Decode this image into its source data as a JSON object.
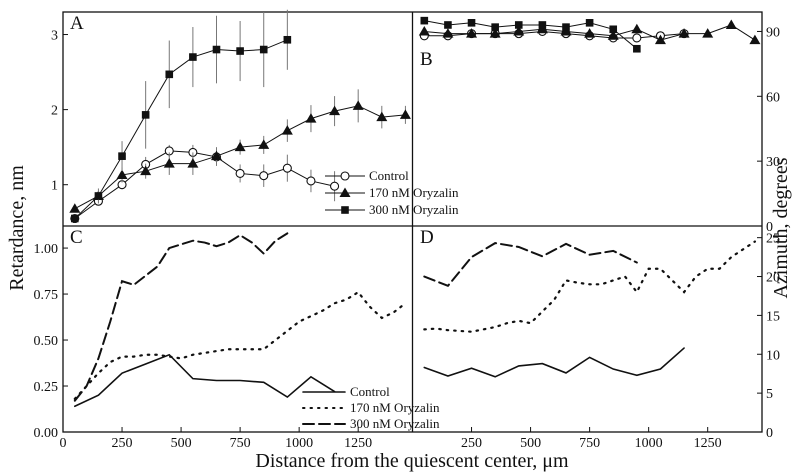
{
  "chart_data": [
    {
      "panel": "A",
      "type": "line",
      "ylabel": "Retardance, nm",
      "ylim": [
        0.45,
        3.3
      ],
      "xlim": [
        0,
        1480
      ],
      "yticks": [
        1,
        2,
        3
      ],
      "error_bars": true,
      "legend_position": "center-right",
      "series": [
        {
          "name": "Control",
          "marker": "open-circle",
          "x": [
            50,
            150,
            250,
            350,
            450,
            550,
            650,
            750,
            850,
            950,
            1050,
            1150
          ],
          "y": [
            0.55,
            0.78,
            1.0,
            1.27,
            1.45,
            1.43,
            1.37,
            1.15,
            1.12,
            1.22,
            1.05,
            0.98
          ],
          "err": [
            0.05,
            0.05,
            0.06,
            0.1,
            0.08,
            0.1,
            0.12,
            0.12,
            0.15,
            0.18,
            0.15,
            0.2
          ]
        },
        {
          "name": "170 nM Oryzalin",
          "marker": "filled-triangle",
          "x": [
            50,
            150,
            250,
            350,
            450,
            550,
            650,
            750,
            850,
            950,
            1050,
            1150,
            1250,
            1350,
            1450
          ],
          "y": [
            0.68,
            0.85,
            1.13,
            1.18,
            1.28,
            1.28,
            1.38,
            1.5,
            1.53,
            1.72,
            1.88,
            1.98,
            2.05,
            1.9,
            1.93
          ],
          "err": [
            0.05,
            0.06,
            0.1,
            0.1,
            0.15,
            0.15,
            0.12,
            0.1,
            0.12,
            0.15,
            0.18,
            0.2,
            0.22,
            0.15,
            0.12
          ]
        },
        {
          "name": "300 nM Oryzalin",
          "marker": "filled-square",
          "x": [
            50,
            150,
            250,
            350,
            450,
            550,
            650,
            750,
            850,
            950
          ],
          "y": [
            0.55,
            0.85,
            1.38,
            1.93,
            2.47,
            2.7,
            2.8,
            2.78,
            2.8,
            2.93
          ],
          "err": [
            0.05,
            0.1,
            0.2,
            0.45,
            0.45,
            0.4,
            0.45,
            0.4,
            0.5,
            0.4
          ]
        }
      ]
    },
    {
      "panel": "B",
      "type": "line",
      "ylabel": "Azimuth, degrees",
      "ylim": [
        0,
        99
      ],
      "xlim": [
        0,
        1480
      ],
      "yticks": [
        0,
        30,
        60,
        90
      ],
      "error_bars": true,
      "series": [
        {
          "name": "Control",
          "marker": "open-circle",
          "x": [
            50,
            150,
            250,
            350,
            450,
            550,
            650,
            750,
            850,
            950,
            1050,
            1150
          ],
          "y": [
            88,
            88,
            89,
            89,
            89,
            90,
            89,
            88,
            87,
            87,
            88,
            89
          ]
        },
        {
          "name": "170 nM Oryzalin",
          "marker": "filled-triangle",
          "x": [
            50,
            150,
            250,
            350,
            450,
            550,
            650,
            750,
            850,
            950,
            1050,
            1150,
            1250,
            1350,
            1450
          ],
          "y": [
            90,
            89,
            89,
            89,
            90,
            91,
            90,
            89,
            88,
            91,
            86,
            89,
            89,
            93,
            86
          ]
        },
        {
          "name": "300 nM Oryzalin",
          "marker": "filled-square",
          "x": [
            50,
            150,
            250,
            350,
            450,
            550,
            650,
            750,
            850,
            950
          ],
          "y": [
            95,
            93,
            94,
            92,
            93,
            93,
            92,
            94,
            91,
            82
          ]
        }
      ]
    },
    {
      "panel": "C",
      "type": "line",
      "ylabel": "Retardance, nm",
      "ylim": [
        0,
        1.12
      ],
      "xlim": [
        0,
        1480
      ],
      "yticks": [
        0.0,
        0.25,
        0.5,
        0.75,
        1.0
      ],
      "ytick_labels": [
        "0.00",
        "0.25",
        "0.50",
        "0.75",
        "1.00"
      ],
      "legend_position": "bottom-right",
      "series": [
        {
          "name": "Control",
          "style": "solid",
          "x": [
            50,
            150,
            250,
            350,
            450,
            550,
            650,
            750,
            850,
            950,
            1050,
            1150
          ],
          "y": [
            0.14,
            0.2,
            0.32,
            0.37,
            0.42,
            0.29,
            0.28,
            0.28,
            0.27,
            0.19,
            0.3,
            0.22
          ]
        },
        {
          "name": "170 nM Oryzalin",
          "style": "dotted",
          "x": [
            50,
            100,
            150,
            200,
            250,
            300,
            350,
            400,
            450,
            500,
            550,
            600,
            650,
            700,
            750,
            800,
            850,
            900,
            950,
            1000,
            1050,
            1100,
            1150,
            1200,
            1250,
            1300,
            1350,
            1400,
            1450
          ],
          "y": [
            0.18,
            0.25,
            0.32,
            0.38,
            0.41,
            0.41,
            0.42,
            0.42,
            0.41,
            0.4,
            0.42,
            0.43,
            0.44,
            0.45,
            0.45,
            0.45,
            0.45,
            0.5,
            0.55,
            0.6,
            0.63,
            0.66,
            0.7,
            0.72,
            0.76,
            0.68,
            0.62,
            0.65,
            0.7
          ]
        },
        {
          "name": "300 nM Oryzalin",
          "style": "dashed",
          "x": [
            50,
            100,
            150,
            200,
            250,
            300,
            350,
            400,
            450,
            500,
            550,
            600,
            650,
            700,
            750,
            800,
            850,
            900,
            950
          ],
          "y": [
            0.17,
            0.25,
            0.4,
            0.6,
            0.82,
            0.8,
            0.85,
            0.9,
            1.0,
            1.02,
            1.04,
            1.03,
            1.01,
            1.03,
            1.07,
            1.03,
            0.97,
            1.04,
            1.08
          ]
        }
      ]
    },
    {
      "panel": "D",
      "type": "line",
      "ylabel": "Azimuth, degrees",
      "ylim": [
        0,
        26.5
      ],
      "xlim": [
        0,
        1480
      ],
      "yticks": [
        0,
        5,
        10,
        15,
        20,
        25
      ],
      "series": [
        {
          "name": "Control",
          "style": "solid",
          "x": [
            50,
            150,
            250,
            350,
            450,
            550,
            650,
            750,
            850,
            950,
            1050,
            1150
          ],
          "y": [
            8.3,
            7.2,
            8.2,
            7.1,
            8.5,
            8.8,
            7.6,
            9.6,
            8.1,
            7.3,
            8.1,
            10.8
          ]
        },
        {
          "name": "170 nM Oryzalin",
          "style": "dotted",
          "x": [
            50,
            100,
            150,
            200,
            250,
            300,
            350,
            400,
            450,
            500,
            550,
            600,
            650,
            700,
            750,
            800,
            850,
            900,
            950,
            1000,
            1050,
            1100,
            1150,
            1200,
            1250,
            1300,
            1350,
            1400,
            1450
          ],
          "y": [
            13.2,
            13.3,
            13.1,
            13.0,
            12.9,
            13.2,
            13.5,
            14.0,
            14.3,
            14.0,
            15.5,
            17.0,
            19.5,
            19.2,
            19.0,
            19.0,
            19.5,
            20.0,
            18.0,
            21.0,
            21.0,
            19.5,
            18.0,
            20.0,
            21.0,
            21.0,
            22.5,
            23.5,
            24.5
          ]
        },
        {
          "name": "300 nM Oryzalin",
          "style": "dashed",
          "x": [
            50,
            150,
            250,
            350,
            450,
            550,
            650,
            750,
            850,
            950
          ],
          "y": [
            20.0,
            18.8,
            22.5,
            24.3,
            23.8,
            22.6,
            24.2,
            22.8,
            23.3,
            21.8
          ]
        }
      ]
    }
  ],
  "labels": {
    "panel_a": "A",
    "panel_b": "B",
    "panel_c": "C",
    "panel_d": "D",
    "y_left": "Retardance, nm",
    "y_right": "Azimuth, degrees",
    "x": "Distance from the quiescent center, μm"
  },
  "x_axis": {
    "ticks": [
      0,
      250,
      500,
      750,
      1000,
      1250
    ],
    "tick_labels": [
      "0",
      "250",
      "500",
      "750",
      "1000",
      "1250"
    ]
  },
  "legend_top": [
    "Control",
    "170 nM Oryzalin",
    "300 nM Oryzalin"
  ],
  "legend_bottom": [
    "Control",
    "170 nM Oryzalin",
    "300 nM Oryzalin"
  ]
}
